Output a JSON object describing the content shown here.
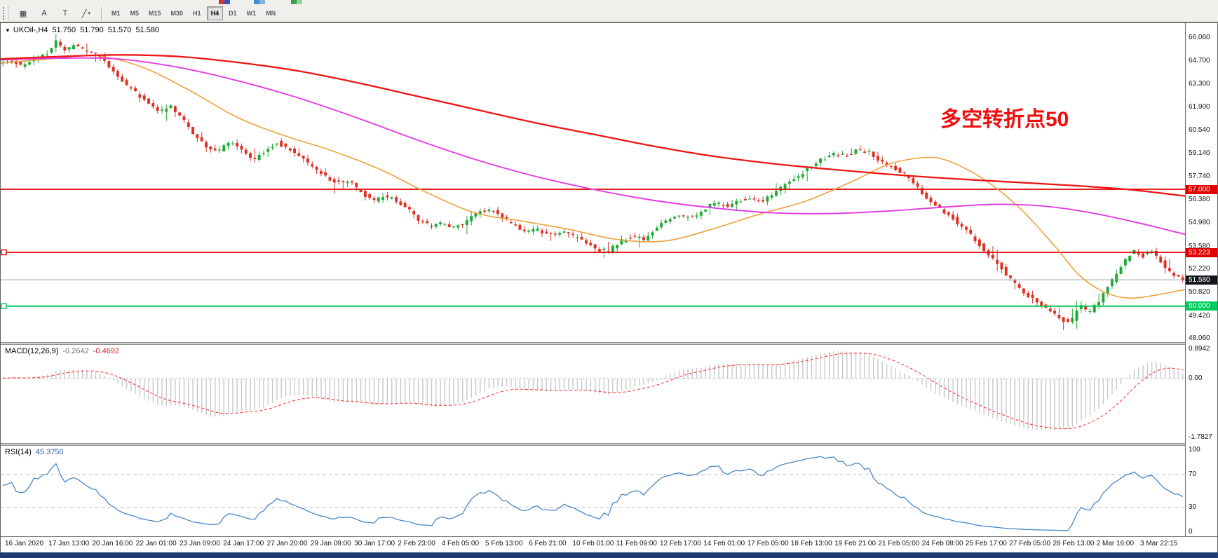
{
  "toolbar": {
    "clipped_icons": [
      {
        "colors": [
          "#c8392f",
          "#3253c8"
        ]
      },
      {
        "colors": [
          "#3f8fd2",
          "#7fb3e0"
        ]
      },
      {
        "colors": [
          "#3da04b",
          "#8fd29b"
        ]
      }
    ],
    "left_buttons": [
      {
        "glyph": "▦",
        "name": "chart-grid-icon"
      },
      {
        "glyph": "A",
        "name": "text-label-tool"
      },
      {
        "glyph": "T",
        "name": "arrow-tool"
      },
      {
        "glyph": "╱",
        "name": "drawing-objects-dropdown",
        "caret": "▾"
      }
    ],
    "timeframes": [
      "M1",
      "M5",
      "M15",
      "M30",
      "H1",
      "H4",
      "D1",
      "W1",
      "MN"
    ],
    "active_timeframe": "H4"
  },
  "chart_data": {
    "type": "candlestick",
    "symbol": "UKOil-",
    "timeframe": "H4",
    "title": "UKOil-,H4",
    "ohlc": {
      "open": "51.750",
      "high": "51.790",
      "low": "51.570",
      "close": "51.580"
    },
    "colors": {
      "up": "#1daa35",
      "down": "#e03024"
    },
    "candle_count": 268,
    "y_axis": {
      "max": 66.95,
      "min": 47.85,
      "ticks": [
        "66.060",
        "64.700",
        "63.300",
        "61.900",
        "60.540",
        "59.140",
        "57.740",
        "56.380",
        "54.980",
        "53.580",
        "52.220",
        "50.820",
        "49.420",
        "48.060"
      ]
    },
    "x_axis": {
      "labels": [
        "16 Jan 2020",
        "17 Jan 13:00",
        "20 Jan 16:00",
        "22 Jan 01:00",
        "23 Jan 09:00",
        "24 Jan 17:00",
        "27 Jan 20:00",
        "29 Jan 09:00",
        "30 Jan 17:00",
        "2 Feb 23:00",
        "4 Feb 05:00",
        "5 Feb 13:00",
        "6 Feb 21:00",
        "10 Feb 01:00",
        "11 Feb 09:00",
        "12 Feb 17:00",
        "14 Feb 01:00",
        "17 Feb 05:00",
        "18 Feb 13:00",
        "19 Feb 21:00",
        "21 Feb 05:00",
        "24 Feb 08:00",
        "25 Feb 17:00",
        "27 Feb 05:00",
        "28 Feb 13:00",
        "2 Mar 16:00",
        "3 Mar 22:15"
      ]
    },
    "price_path_anchors": [
      [
        0,
        64.5
      ],
      [
        0.01,
        64.8
      ],
      [
        0.02,
        64.3
      ],
      [
        0.03,
        64.9
      ],
      [
        0.04,
        65.0
      ],
      [
        0.048,
        65.9
      ],
      [
        0.055,
        65.3
      ],
      [
        0.065,
        65.6
      ],
      [
        0.075,
        65.2
      ],
      [
        0.085,
        65.0
      ],
      [
        0.095,
        64.2
      ],
      [
        0.105,
        63.4
      ],
      [
        0.115,
        62.8
      ],
      [
        0.125,
        62.3
      ],
      [
        0.135,
        61.6
      ],
      [
        0.145,
        62.0
      ],
      [
        0.155,
        61.2
      ],
      [
        0.165,
        60.3
      ],
      [
        0.175,
        59.6
      ],
      [
        0.185,
        59.2
      ],
      [
        0.195,
        59.9
      ],
      [
        0.205,
        59.3
      ],
      [
        0.215,
        58.7
      ],
      [
        0.225,
        59.3
      ],
      [
        0.235,
        59.8
      ],
      [
        0.245,
        59.4
      ],
      [
        0.255,
        58.9
      ],
      [
        0.265,
        58.3
      ],
      [
        0.275,
        57.8
      ],
      [
        0.285,
        57.4
      ],
      [
        0.295,
        57.5
      ],
      [
        0.305,
        56.9
      ],
      [
        0.315,
        56.3
      ],
      [
        0.325,
        56.6
      ],
      [
        0.335,
        56.4
      ],
      [
        0.345,
        55.9
      ],
      [
        0.355,
        55.1
      ],
      [
        0.365,
        54.8
      ],
      [
        0.375,
        55.0
      ],
      [
        0.385,
        54.7
      ],
      [
        0.395,
        55.1
      ],
      [
        0.405,
        55.6
      ],
      [
        0.415,
        55.8
      ],
      [
        0.425,
        55.3
      ],
      [
        0.435,
        54.9
      ],
      [
        0.445,
        54.4
      ],
      [
        0.455,
        54.6
      ],
      [
        0.465,
        54.2
      ],
      [
        0.475,
        54.5
      ],
      [
        0.485,
        54.2
      ],
      [
        0.495,
        53.8
      ],
      [
        0.505,
        53.4
      ],
      [
        0.515,
        53.3
      ],
      [
        0.525,
        53.9
      ],
      [
        0.535,
        54.2
      ],
      [
        0.545,
        54.0
      ],
      [
        0.555,
        54.6
      ],
      [
        0.565,
        55.2
      ],
      [
        0.575,
        55.5
      ],
      [
        0.585,
        55.3
      ],
      [
        0.595,
        55.8
      ],
      [
        0.605,
        56.2
      ],
      [
        0.615,
        56.0
      ],
      [
        0.625,
        56.3
      ],
      [
        0.635,
        56.5
      ],
      [
        0.645,
        56.3
      ],
      [
        0.655,
        56.8
      ],
      [
        0.665,
        57.3
      ],
      [
        0.675,
        57.8
      ],
      [
        0.685,
        58.3
      ],
      [
        0.695,
        58.8
      ],
      [
        0.705,
        59.1
      ],
      [
        0.715,
        59.0
      ],
      [
        0.725,
        59.4
      ],
      [
        0.735,
        59.2
      ],
      [
        0.745,
        58.7
      ],
      [
        0.755,
        58.3
      ],
      [
        0.765,
        57.9
      ],
      [
        0.775,
        57.2
      ],
      [
        0.785,
        56.3
      ],
      [
        0.795,
        55.8
      ],
      [
        0.805,
        55.3
      ],
      [
        0.815,
        54.7
      ],
      [
        0.825,
        53.9
      ],
      [
        0.835,
        53.2
      ],
      [
        0.845,
        52.4
      ],
      [
        0.855,
        51.6
      ],
      [
        0.865,
        50.9
      ],
      [
        0.875,
        50.3
      ],
      [
        0.885,
        49.9
      ],
      [
        0.895,
        49.3
      ],
      [
        0.905,
        48.9
      ],
      [
        0.912,
        50.1
      ],
      [
        0.92,
        49.6
      ],
      [
        0.93,
        50.4
      ],
      [
        0.94,
        51.5
      ],
      [
        0.95,
        52.6
      ],
      [
        0.958,
        53.3
      ],
      [
        0.966,
        53.0
      ],
      [
        0.974,
        53.4
      ],
      [
        0.982,
        52.6
      ],
      [
        0.99,
        52.0
      ],
      [
        1,
        51.6
      ]
    ],
    "moving_averages": [
      {
        "name": "ma-fast",
        "color": "#f0a13c",
        "width": 1.6,
        "anchors": [
          [
            0,
            64.55
          ],
          [
            0.04,
            64.8
          ],
          [
            0.08,
            65.0
          ],
          [
            0.12,
            64.3
          ],
          [
            0.16,
            62.9
          ],
          [
            0.2,
            61.3
          ],
          [
            0.24,
            60.2
          ],
          [
            0.28,
            59.3
          ],
          [
            0.32,
            58.2
          ],
          [
            0.36,
            56.8
          ],
          [
            0.4,
            55.6
          ],
          [
            0.44,
            55.1
          ],
          [
            0.48,
            54.6
          ],
          [
            0.52,
            54.0
          ],
          [
            0.56,
            53.9
          ],
          [
            0.6,
            54.6
          ],
          [
            0.64,
            55.5
          ],
          [
            0.68,
            56.3
          ],
          [
            0.72,
            57.5
          ],
          [
            0.75,
            58.5
          ],
          [
            0.78,
            58.9
          ],
          [
            0.8,
            58.7
          ],
          [
            0.83,
            57.6
          ],
          [
            0.86,
            55.9
          ],
          [
            0.89,
            53.6
          ],
          [
            0.91,
            51.9
          ],
          [
            0.93,
            50.9
          ],
          [
            0.95,
            50.5
          ],
          [
            0.97,
            50.6
          ],
          [
            1,
            51.0
          ]
        ]
      },
      {
        "name": "ma-mid",
        "color": "#e43ce4",
        "width": 1.9,
        "anchors": [
          [
            0,
            64.75
          ],
          [
            0.05,
            64.85
          ],
          [
            0.1,
            64.8
          ],
          [
            0.15,
            64.3
          ],
          [
            0.2,
            63.5
          ],
          [
            0.25,
            62.5
          ],
          [
            0.3,
            61.3
          ],
          [
            0.35,
            60.0
          ],
          [
            0.4,
            58.8
          ],
          [
            0.45,
            57.8
          ],
          [
            0.5,
            57.0
          ],
          [
            0.55,
            56.35
          ],
          [
            0.6,
            55.9
          ],
          [
            0.65,
            55.6
          ],
          [
            0.7,
            55.55
          ],
          [
            0.75,
            55.7
          ],
          [
            0.8,
            55.95
          ],
          [
            0.84,
            56.1
          ],
          [
            0.88,
            56.0
          ],
          [
            0.92,
            55.6
          ],
          [
            0.96,
            55.0
          ],
          [
            1,
            54.3
          ]
        ]
      },
      {
        "name": "ma-slow",
        "color": "#ed1515",
        "width": 2.3,
        "anchors": [
          [
            0,
            64.8
          ],
          [
            0.05,
            64.95
          ],
          [
            0.1,
            65.05
          ],
          [
            0.15,
            64.95
          ],
          [
            0.2,
            64.6
          ],
          [
            0.25,
            64.1
          ],
          [
            0.3,
            63.4
          ],
          [
            0.35,
            62.6
          ],
          [
            0.4,
            61.8
          ],
          [
            0.45,
            61.0
          ],
          [
            0.5,
            60.3
          ],
          [
            0.55,
            59.6
          ],
          [
            0.6,
            59.0
          ],
          [
            0.65,
            58.55
          ],
          [
            0.7,
            58.2
          ],
          [
            0.75,
            57.9
          ],
          [
            0.8,
            57.65
          ],
          [
            0.85,
            57.45
          ],
          [
            0.9,
            57.25
          ],
          [
            0.95,
            57.0
          ],
          [
            1,
            56.6
          ]
        ]
      }
    ],
    "hlines": [
      {
        "price": 57.0,
        "label": "57.000",
        "color": "#e00000",
        "width": 1.8,
        "left_marker": false
      },
      {
        "price": 53.223,
        "label": "53.223",
        "color": "#e00000",
        "width": 1.8,
        "left_marker": true
      },
      {
        "price": 50.0,
        "label": "50.000",
        "color": "#00cc5c",
        "width": 2.0,
        "left_marker": true
      }
    ],
    "bid_line": {
      "price": 51.58,
      "label": "51.580",
      "line_color": "#a0a0a0",
      "tag_color": "#14161c"
    },
    "annotation": {
      "text": "多空转折点50",
      "color": "#f30d0d"
    },
    "indicators": {
      "macd": {
        "label": "MACD(12,26,9)",
        "values": [
          "-0.2642",
          "-0.4692"
        ],
        "scale_labels": [
          "0.8942",
          "0.00",
          "-1.7827"
        ],
        "scale_max": 1.02,
        "scale_min": -1.95,
        "histogram_color": "#c8c8c8",
        "signal_color": "#ff3434"
      },
      "rsi": {
        "label": "RSI(14)",
        "value": "45.3750",
        "scale_labels": [
          "100",
          "70",
          "30",
          "0"
        ],
        "levels": [
          70,
          30
        ],
        "line_color": "#4a86c8",
        "level_color": "#b9b9cd"
      }
    }
  },
  "status_bar": {
    "color": "#1e3a6e"
  }
}
